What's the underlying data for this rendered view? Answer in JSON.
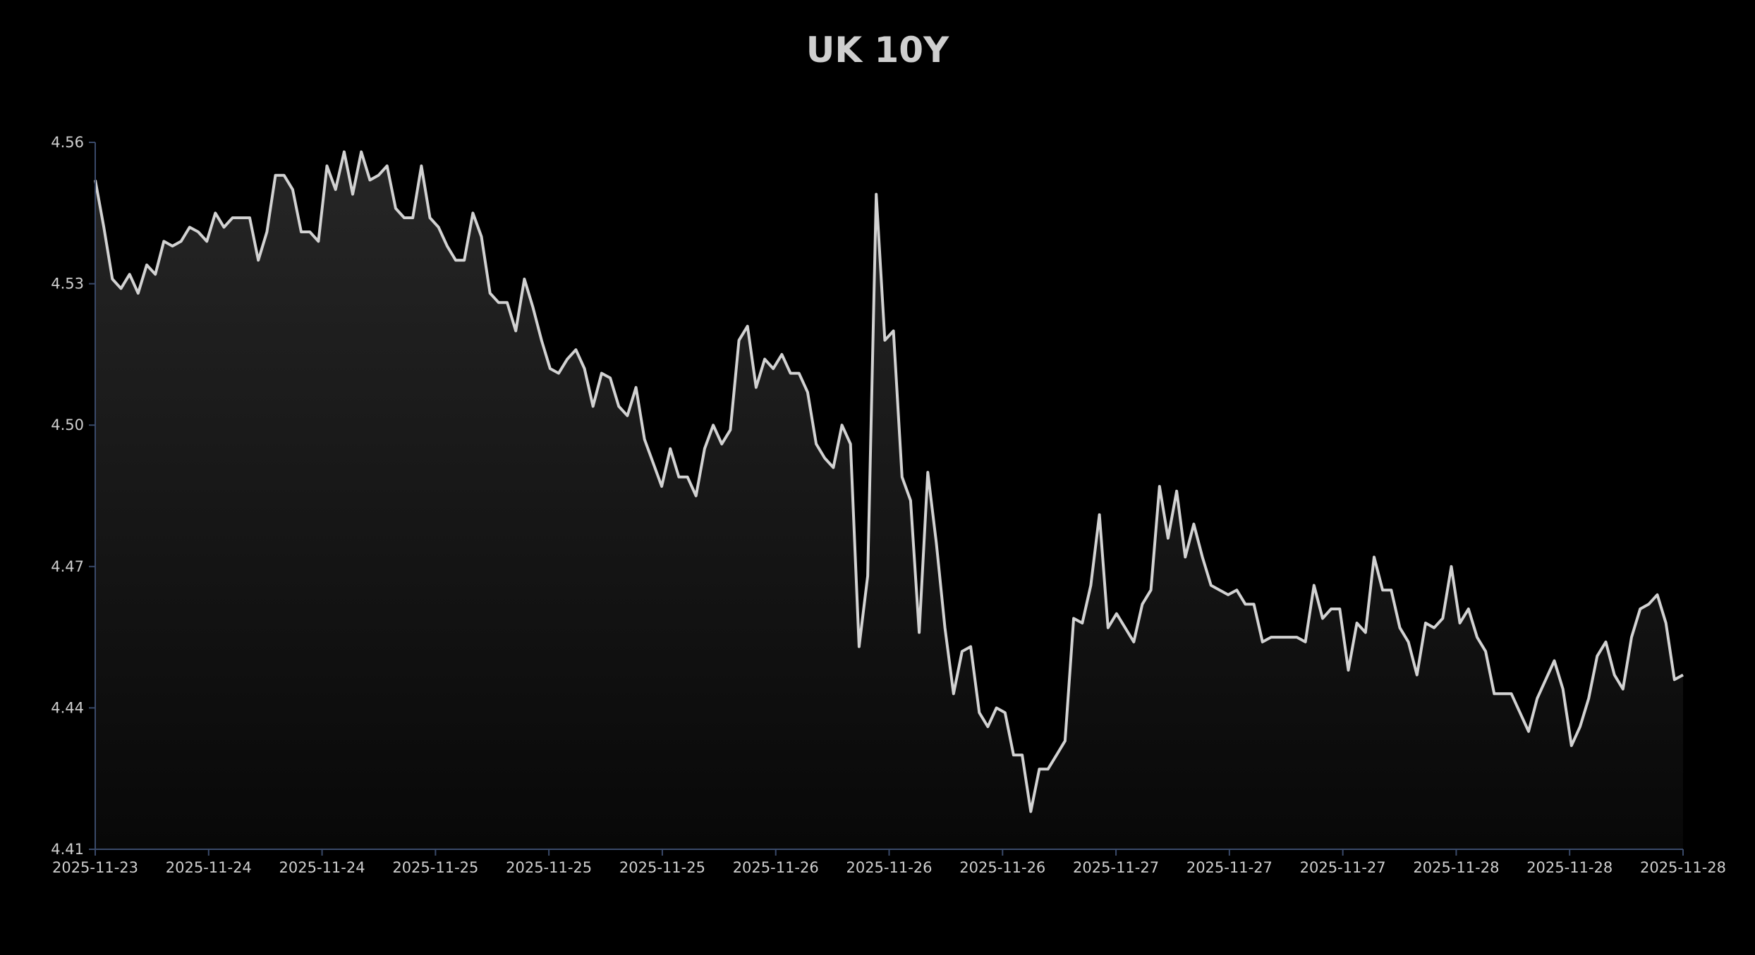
{
  "chart_data": {
    "type": "area",
    "title": "UK 10Y",
    "xlabel": "",
    "ylabel": "",
    "ylim": [
      4.41,
      4.56
    ],
    "y_ticks": [
      4.41,
      4.44,
      4.47,
      4.5,
      4.53,
      4.56
    ],
    "y_tick_labels": [
      "4.41",
      "4.44",
      "4.47",
      "4.50",
      "4.53",
      "4.56"
    ],
    "x_tick_labels": [
      "2025-11-23",
      "2025-11-24",
      "2025-11-24",
      "2025-11-25",
      "2025-11-25",
      "2025-11-25",
      "2025-11-26",
      "2025-11-26",
      "2025-11-26",
      "2025-11-27",
      "2025-11-27",
      "2025-11-27",
      "2025-11-28",
      "2025-11-28",
      "2025-11-28"
    ],
    "grid": false,
    "legend": "none",
    "colors": {
      "background": "#000000",
      "line": "#d2d2d2",
      "fill_top": "#262626",
      "fill_bottom": "#080808",
      "axis": "#3a4a6a",
      "text": "#cfcfcf"
    },
    "series": [
      {
        "values": [
          4.552,
          4.542,
          4.531,
          4.529,
          4.532,
          4.528,
          4.534,
          4.532,
          4.539,
          4.538,
          4.539,
          4.542,
          4.541,
          4.539,
          4.545,
          4.542,
          4.544,
          4.544,
          4.544,
          4.535,
          4.541,
          4.553,
          4.553,
          4.55,
          4.541,
          4.541,
          4.539,
          4.555,
          4.55,
          4.558,
          4.549,
          4.558,
          4.552,
          4.553,
          4.555,
          4.546,
          4.544,
          4.544,
          4.555,
          4.544,
          4.542,
          4.538,
          4.535,
          4.535,
          4.545,
          4.54,
          4.528,
          4.526,
          4.526,
          4.52,
          4.531,
          4.525,
          4.518,
          4.512,
          4.511,
          4.514,
          4.516,
          4.512,
          4.504,
          4.511,
          4.51,
          4.504,
          4.502,
          4.508,
          4.497,
          4.492,
          4.487,
          4.495,
          4.489,
          4.489,
          4.485,
          4.495,
          4.5,
          4.496,
          4.499,
          4.518,
          4.521,
          4.508,
          4.514,
          4.512,
          4.515,
          4.511,
          4.511,
          4.507,
          4.496,
          4.493,
          4.491,
          4.5,
          4.496,
          4.453,
          4.468,
          4.549,
          4.518,
          4.52,
          4.489,
          4.484,
          4.456,
          4.49,
          4.475,
          4.457,
          4.443,
          4.452,
          4.453,
          4.439,
          4.436,
          4.44,
          4.439,
          4.43,
          4.43,
          4.418,
          4.427,
          4.427,
          4.43,
          4.433,
          4.459,
          4.458,
          4.466,
          4.481,
          4.457,
          4.46,
          4.457,
          4.454,
          4.462,
          4.465,
          4.487,
          4.476,
          4.486,
          4.472,
          4.479,
          4.472,
          4.466,
          4.465,
          4.464,
          4.465,
          4.462,
          4.462,
          4.454,
          4.455,
          4.455,
          4.455,
          4.455,
          4.454,
          4.466,
          4.459,
          4.461,
          4.461,
          4.448,
          4.458,
          4.456,
          4.472,
          4.465,
          4.465,
          4.457,
          4.454,
          4.447,
          4.458,
          4.457,
          4.459,
          4.47,
          4.458,
          4.461,
          4.455,
          4.452,
          4.443,
          4.443,
          4.443,
          4.439,
          4.435,
          4.442,
          4.446,
          4.45,
          4.444,
          4.432,
          4.436,
          4.442,
          4.451,
          4.454,
          4.447,
          4.444,
          4.455,
          4.461,
          4.462,
          4.464,
          4.458,
          4.446,
          4.447
        ]
      }
    ]
  }
}
